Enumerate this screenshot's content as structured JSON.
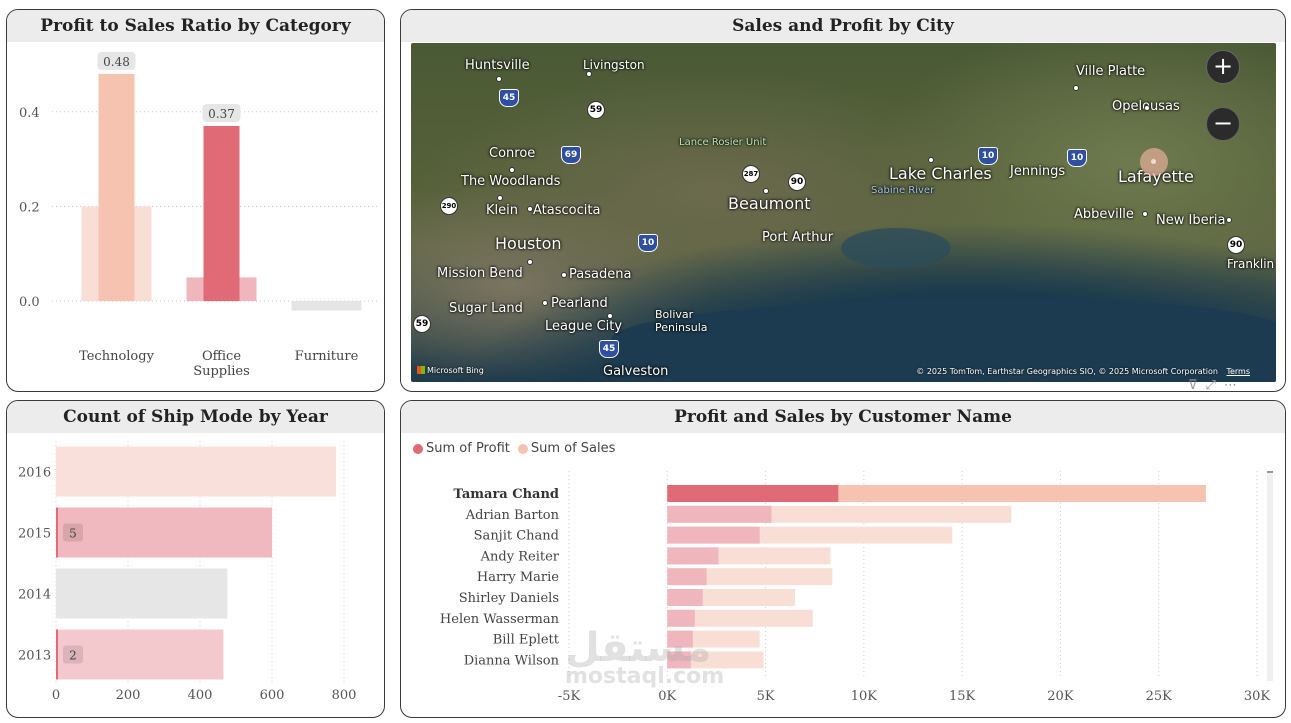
{
  "panels": {
    "ratio_title": "Profit to Sales Ratio by Category",
    "map_title": "Sales and Profit by City",
    "ship_title": "Count of Ship Mode by Year",
    "customer_title": "Profit and Sales by Customer Name"
  },
  "colors": {
    "profit": "#e06a75",
    "sales": "#f5c3b0",
    "profit_light": "#f0b6bd",
    "sales_light": "#f9ded6",
    "gray": "#e5e5e5"
  },
  "chart_data": [
    {
      "id": "ratio",
      "type": "bar",
      "title": "Profit to Sales Ratio by Category",
      "categories": [
        "Technology",
        "Office Supplies",
        "Furniture"
      ],
      "category_labels": [
        [
          "Technology"
        ],
        [
          "Office",
          "Supplies"
        ],
        [
          "Furniture"
        ]
      ],
      "values": [
        0.48,
        0.37,
        -0.02
      ],
      "data_labels": [
        "0.48",
        "0.37",
        ""
      ],
      "background_values": [
        0.2,
        0.05,
        -0.02
      ],
      "yticks": [
        "0.0",
        "0.2",
        "0.4"
      ],
      "ytick_values": [
        0.0,
        0.2,
        0.4
      ],
      "ylim": [
        -0.04,
        0.52
      ]
    },
    {
      "id": "shipmode",
      "type": "bar",
      "orientation": "horizontal",
      "title": "Count of Ship Mode by Year",
      "categories": [
        "2016",
        "2015",
        "2014",
        "2013"
      ],
      "values": [
        778,
        600,
        476,
        465
      ],
      "highlight_values": [
        null,
        5,
        null,
        2
      ],
      "highlight_labels": [
        "",
        "5",
        "",
        "2"
      ],
      "xticks": [
        "0",
        "200",
        "400",
        "600",
        "800"
      ],
      "xtick_values": [
        0,
        200,
        400,
        600,
        800
      ],
      "xlim": [
        0,
        850
      ]
    },
    {
      "id": "customers",
      "type": "bar",
      "orientation": "horizontal",
      "title": "Profit and Sales by Customer Name",
      "categories": [
        "Tamara Chand",
        "Adrian Barton",
        "Sanjit Chand",
        "Andy Reiter",
        "Harry Marie",
        "Shirley Daniels",
        "Helen Wasserman",
        "Bill Eplett",
        "Dianna Wilson"
      ],
      "series": [
        {
          "name": "Sum of Profit",
          "values": [
            8700,
            5300,
            4700,
            2600,
            2000,
            1800,
            1400,
            1300,
            1200
          ]
        },
        {
          "name": "Sum of Sales",
          "values": [
            27400,
            17500,
            14500,
            8300,
            8400,
            6500,
            7400,
            4700,
            4900
          ]
        }
      ],
      "xticks": [
        "-5K",
        "0K",
        "5K",
        "10K",
        "15K",
        "20K",
        "25K",
        "30K"
      ],
      "xtick_values": [
        -5000,
        0,
        5000,
        10000,
        15000,
        20000,
        25000,
        30000
      ],
      "xlim": [
        -5000,
        30000
      ]
    }
  ],
  "map": {
    "labels": [
      "Huntsville",
      "Livingston",
      "Conroe",
      "The Woodlands",
      "Klein",
      "Atascocita",
      "Houston",
      "Mission Bend",
      "Pasadena",
      "Sugar Land",
      "Pearland",
      "League City",
      "Galveston",
      "Beaumont",
      "Port Arthur",
      "Lake Charles",
      "Jennings",
      "Lafayette",
      "Ville Platte",
      "Opelousas",
      "Abbeville",
      "New Iberia",
      "Franklin"
    ],
    "poi_lance": "Lance Rosier Unit",
    "poi_bolivar": "Bolivar Peninsula",
    "poi_sabine": "Sabine River",
    "highways": [
      "45",
      "59",
      "69",
      "290",
      "287",
      "90",
      "10",
      "10",
      "10",
      "45",
      "59",
      "90"
    ],
    "zoom_in": "+",
    "zoom_out": "−",
    "logo": "Microsoft Bing",
    "credit": "© 2025 TomTom, Earthstar Geographics SIO, © 2025 Microsoft Corporation",
    "terms": "Terms"
  },
  "legend": {
    "profit": "Sum of Profit",
    "sales": "Sum of Sales"
  },
  "watermark": {
    "arabic": "مستقل",
    "latin": "mostaql.com"
  }
}
